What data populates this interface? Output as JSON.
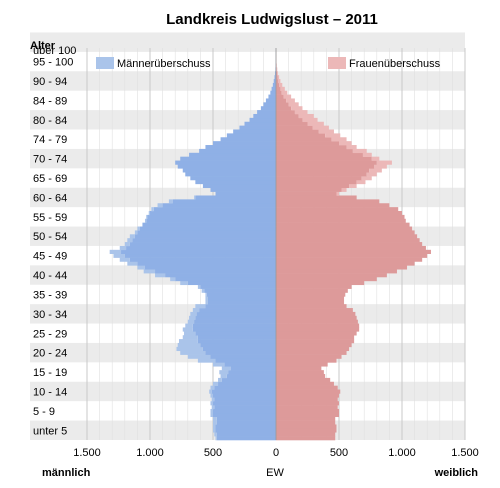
{
  "chart_data": {
    "type": "bar",
    "title": "Landkreis Ludwigslust – 2011",
    "y_axis_title": "Alter",
    "x_axis_title": "EW",
    "left_axis_label": "männlich",
    "right_axis_label": "weiblich",
    "x_ticks": [
      "1.500",
      "1.000",
      "500",
      "0",
      "500",
      "1.000",
      "1.500"
    ],
    "xlim": [
      -1500,
      1500
    ],
    "age_range": [
      0,
      101
    ],
    "grid": true,
    "legend": [
      {
        "name": "Männerüberschuss",
        "color": "#aac4ea",
        "position": "top-left"
      },
      {
        "name": "Frauenüberschuss",
        "color": "#ecb8b8",
        "position": "top-right"
      }
    ],
    "colors": {
      "male": "#8fb0e6",
      "female": "#dd9a9a",
      "male_excess": "#aac4ea",
      "female_excess": "#ecb8b8",
      "band": "#ebebeb"
    },
    "age_group_labels": [
      {
        "label": "über 100",
        "age": 100.5
      },
      {
        "label": "95 - 100",
        "age": 97.5
      },
      {
        "label": "90 - 94",
        "age": 92.5
      },
      {
        "label": "84 - 89",
        "age": 87.5
      },
      {
        "label": "80 - 84",
        "age": 82.5
      },
      {
        "label": "74 - 79",
        "age": 77.5
      },
      {
        "label": "70 - 74",
        "age": 72.5
      },
      {
        "label": "65 - 69",
        "age": 67.5
      },
      {
        "label": "60 - 64",
        "age": 62.5
      },
      {
        "label": "55 - 59",
        "age": 57.5
      },
      {
        "label": "50 - 54",
        "age": 52.5
      },
      {
        "label": "45 - 49",
        "age": 47.5
      },
      {
        "label": "40 - 44",
        "age": 42.5
      },
      {
        "label": "35 - 39",
        "age": 37.5
      },
      {
        "label": "30 - 34",
        "age": 32.5
      },
      {
        "label": "25 - 29",
        "age": 27.5
      },
      {
        "label": "20 - 24",
        "age": 22.5
      },
      {
        "label": "15 - 19",
        "age": 17.5
      },
      {
        "label": "10 - 14",
        "age": 12.5
      },
      {
        "label": "5 - 9",
        "age": 7.5
      },
      {
        "label": "unter 5",
        "age": 2.5
      }
    ],
    "ages": [
      0,
      1,
      2,
      3,
      4,
      5,
      6,
      7,
      8,
      9,
      10,
      11,
      12,
      13,
      14,
      15,
      16,
      17,
      18,
      19,
      20,
      21,
      22,
      23,
      24,
      25,
      26,
      27,
      28,
      29,
      30,
      31,
      32,
      33,
      34,
      35,
      36,
      37,
      38,
      39,
      40,
      41,
      42,
      43,
      44,
      45,
      46,
      47,
      48,
      49,
      50,
      51,
      52,
      53,
      54,
      55,
      56,
      57,
      58,
      59,
      60,
      61,
      62,
      63,
      64,
      65,
      66,
      67,
      68,
      69,
      70,
      71,
      72,
      73,
      74,
      75,
      76,
      77,
      78,
      79,
      80,
      81,
      82,
      83,
      84,
      85,
      86,
      87,
      88,
      89,
      90,
      91,
      92,
      93,
      94,
      95,
      96,
      97,
      98,
      99,
      100
    ],
    "male": [
      480,
      490,
      500,
      500,
      500,
      500,
      520,
      520,
      510,
      520,
      510,
      520,
      530,
      520,
      500,
      460,
      440,
      450,
      430,
      500,
      620,
      700,
      760,
      790,
      780,
      770,
      740,
      730,
      740,
      720,
      700,
      690,
      680,
      660,
      640,
      560,
      560,
      560,
      590,
      620,
      760,
      840,
      960,
      1050,
      1100,
      1180,
      1240,
      1290,
      1320,
      1240,
      1200,
      1180,
      1160,
      1120,
      1100,
      1060,
      1040,
      1030,
      1010,
      990,
      940,
      850,
      650,
      480,
      520,
      580,
      640,
      680,
      720,
      740,
      780,
      800,
      760,
      690,
      610,
      560,
      500,
      440,
      390,
      340,
      290,
      250,
      210,
      180,
      150,
      120,
      100,
      80,
      60,
      45,
      35,
      25,
      18,
      12,
      8,
      5,
      3,
      2,
      1,
      1,
      1
    ],
    "female": [
      470,
      470,
      480,
      480,
      470,
      470,
      500,
      500,
      490,
      500,
      490,
      500,
      510,
      490,
      460,
      430,
      390,
      380,
      360,
      410,
      480,
      520,
      560,
      580,
      600,
      620,
      620,
      640,
      660,
      660,
      650,
      640,
      630,
      610,
      560,
      540,
      540,
      550,
      570,
      600,
      700,
      800,
      880,
      960,
      1040,
      1100,
      1160,
      1200,
      1230,
      1190,
      1160,
      1140,
      1120,
      1100,
      1080,
      1060,
      1030,
      1020,
      1000,
      970,
      900,
      820,
      640,
      500,
      560,
      640,
      710,
      760,
      800,
      840,
      880,
      920,
      820,
      760,
      720,
      640,
      600,
      560,
      510,
      460,
      420,
      380,
      330,
      300,
      250,
      210,
      180,
      150,
      120,
      90,
      70,
      50,
      35,
      25,
      15,
      10,
      6,
      4,
      2,
      1,
      1
    ]
  }
}
